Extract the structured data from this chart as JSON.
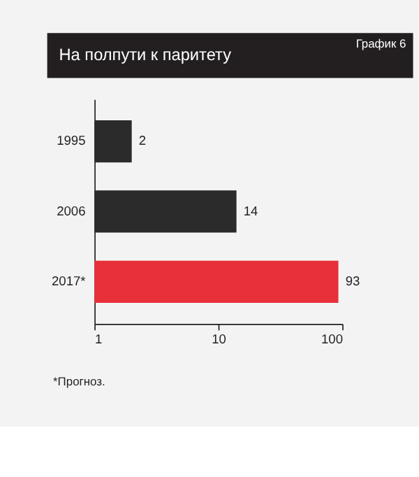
{
  "chart_data": {
    "type": "bar",
    "orientation": "horizontal",
    "title": "На полпути к паритету",
    "categories": [
      "1995",
      "2006",
      "2017*"
    ],
    "values": [
      2,
      14,
      93
    ],
    "colors": [
      "#2b2b2b",
      "#2b2b2b",
      "#e8303a"
    ],
    "log": "x",
    "xlim": [
      1,
      100
    ],
    "xticks": [
      1,
      10,
      100
    ],
    "data_labels": true,
    "grid": false,
    "annotations": [
      "График 6",
      "*Прогноз."
    ]
  }
}
